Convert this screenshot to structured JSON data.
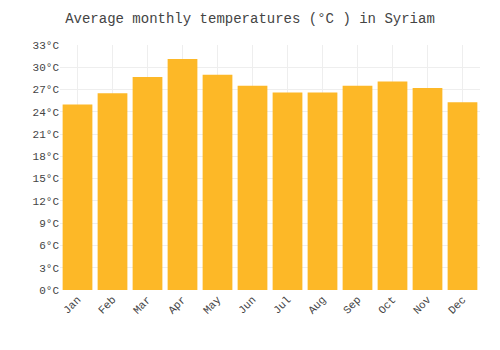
{
  "chart_data": {
    "type": "bar",
    "title": "Average monthly temperatures (°C ) in Syriam",
    "categories": [
      "Jan",
      "Feb",
      "Mar",
      "Apr",
      "May",
      "Jun",
      "Jul",
      "Aug",
      "Sep",
      "Oct",
      "Nov",
      "Dec"
    ],
    "values": [
      25.0,
      26.5,
      28.7,
      31.1,
      29.0,
      27.5,
      26.6,
      26.6,
      27.5,
      28.1,
      27.2,
      25.3
    ],
    "color": "#FDB827",
    "ylim": [
      0,
      33
    ],
    "yticks": [
      {
        "value": 0,
        "label": "0°C"
      },
      {
        "value": 3,
        "label": "3°C"
      },
      {
        "value": 6,
        "label": "6°C"
      },
      {
        "value": 9,
        "label": "9°C"
      },
      {
        "value": 12,
        "label": "12°C"
      },
      {
        "value": 15,
        "label": "15°C"
      },
      {
        "value": 18,
        "label": "18°C"
      },
      {
        "value": 21,
        "label": "21°C"
      },
      {
        "value": 24,
        "label": "24°C"
      },
      {
        "value": 27,
        "label": "27°C"
      },
      {
        "value": 30,
        "label": "30°C"
      },
      {
        "value": 33,
        "label": "33°C"
      }
    ],
    "grid": true
  }
}
